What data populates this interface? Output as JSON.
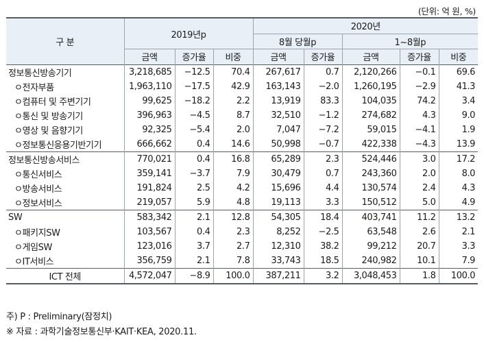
{
  "unit_note": "(단위: 억 원, %)",
  "header": {
    "category": "구 분",
    "y2019": "2019년p",
    "y2020": "2020년",
    "aug": "8월 당월p",
    "jan_aug": "1~8월p",
    "amount": "금액",
    "growth": "증가율",
    "share": "비중"
  },
  "rows": [
    {
      "label": "정보통신방송기기",
      "cells": [
        "3,218,685",
        "−12.5",
        "70.4",
        "267,617",
        "0.7",
        "2,120,266",
        "−0.1",
        "69.6"
      ]
    },
    {
      "label": "ㅇ전자부품",
      "cells": [
        "1,963,110",
        "−17.5",
        "42.9",
        "163,143",
        "−2.0",
        "1,260,195",
        "−2.9",
        "41.3"
      ]
    },
    {
      "label": "ㅇ컴퓨터 및 주변기기",
      "cells": [
        "99,625",
        "−18.2",
        "2.2",
        "13,919",
        "83.3",
        "104,035",
        "74.2",
        "3.4"
      ]
    },
    {
      "label": "ㅇ통신 및 방송기기",
      "cells": [
        "396,963",
        "−4.5",
        "8.7",
        "32,510",
        "−1.2",
        "274,682",
        "4.3",
        "9.0"
      ]
    },
    {
      "label": "ㅇ영상 및 음향기기",
      "cells": [
        "92,325",
        "−5.4",
        "2.0",
        "7,047",
        "−7.2",
        "59,015",
        "−4.1",
        "1.9"
      ]
    },
    {
      "label": "ㅇ정보통신응용기반기기",
      "cells": [
        "666,662",
        "0.4",
        "14.6",
        "50,998",
        "−0.7",
        "422,338",
        "−4.3",
        "13.9"
      ]
    },
    {
      "label": "정보통신방송서비스",
      "cells": [
        "770,021",
        "0.4",
        "16.8",
        "65,289",
        "2.3",
        "524,446",
        "3.0",
        "17.2"
      ]
    },
    {
      "label": "ㅇ통신서비스",
      "cells": [
        "359,141",
        "−3.7",
        "7.9",
        "30,479",
        "0.7",
        "243,360",
        "2.0",
        "8.0"
      ]
    },
    {
      "label": "ㅇ방송서비스",
      "cells": [
        "191,824",
        "2.5",
        "4.2",
        "15,696",
        "4.4",
        "130,574",
        "2.4",
        "4.3"
      ]
    },
    {
      "label": "ㅇ정보서비스",
      "cells": [
        "219,057",
        "5.9",
        "4.8",
        "19,113",
        "3.3",
        "150,512",
        "5.0",
        "4.9"
      ]
    },
    {
      "label": "SW",
      "cells": [
        "583,342",
        "2.1",
        "12.8",
        "54,305",
        "18.4",
        "403,741",
        "11.2",
        "13.2"
      ]
    },
    {
      "label": "ㅇ패키지SW",
      "cells": [
        "103,567",
        "0.4",
        "2.3",
        "8,252",
        "−2.5",
        "63,548",
        "2.6",
        "2.1"
      ]
    },
    {
      "label": "ㅇ게임SW",
      "cells": [
        "123,016",
        "3.7",
        "2.7",
        "12,310",
        "38.2",
        "99,212",
        "20.7",
        "3.3"
      ]
    },
    {
      "label": "ㅇIT서비스",
      "cells": [
        "356,759",
        "2.1",
        "7.8",
        "33,743",
        "18.5",
        "240,982",
        "10.1",
        "7.9"
      ]
    },
    {
      "label": "ICT 전체",
      "cells": [
        "4,572,047",
        "−8.9",
        "100.0",
        "387,211",
        "3.2",
        "3,048,453",
        "1.8",
        "100.0"
      ]
    }
  ],
  "notes": [
    "주) P : Preliminary(잠정치)",
    "※ 자료 : 과학기술정보통신부·KAIT·KEA, 2020.11."
  ]
}
